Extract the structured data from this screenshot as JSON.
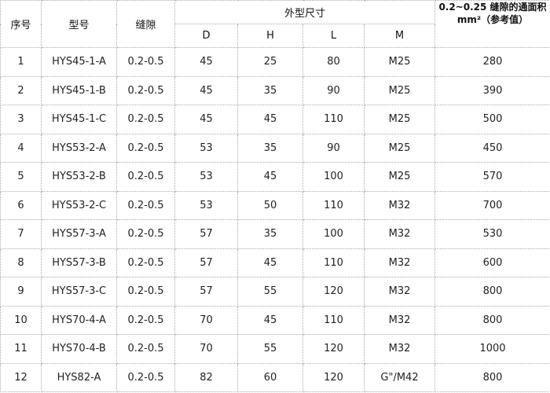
{
  "table": {
    "header": {
      "no": "序号",
      "model": "型号",
      "gap": "缝隙",
      "dims": "外型尺寸",
      "area": "0.2~0.25 缝隙的通面积 mm²（参考值）",
      "sub": [
        "D",
        "H",
        "L",
        "M"
      ]
    },
    "rows": [
      [
        1,
        "HYS45-1-A",
        "0.2-0.5",
        45,
        25,
        80,
        "M25",
        280
      ],
      [
        2,
        "HYS45-1-B",
        "0.2-0.5",
        45,
        35,
        90,
        "M25",
        390
      ],
      [
        3,
        "HYS45-1-C",
        "0.2-0.5",
        45,
        45,
        110,
        "M25",
        500
      ],
      [
        4,
        "HYS53-2-A",
        "0.2-0.5",
        53,
        35,
        90,
        "M25",
        450
      ],
      [
        5,
        "HYS53-2-B",
        "0.2-0.5",
        53,
        45,
        100,
        "M25",
        570
      ],
      [
        6,
        "HYS53-2-C",
        "0.2-0.5",
        53,
        50,
        110,
        "M32",
        700
      ],
      [
        7,
        "HYS57-3-A",
        "0.2-0.5",
        57,
        35,
        100,
        "M32",
        530
      ],
      [
        8,
        "HYS57-3-B",
        "0.2-0.5",
        57,
        45,
        110,
        "M32",
        600
      ],
      [
        9,
        "HYS57-3-C",
        "0.2-0.5",
        57,
        55,
        120,
        "M32",
        800
      ],
      [
        10,
        "HYS70-4-A",
        "0.2-0.5",
        70,
        45,
        110,
        "M32",
        800
      ],
      [
        11,
        "HYS70-4-B",
        "0.2-0.5",
        70,
        55,
        120,
        "M32",
        1000
      ],
      [
        12,
        "HYS82-A",
        "0.2-0.5",
        82,
        60,
        120,
        "G\"/M42",
        800
      ]
    ]
  }
}
